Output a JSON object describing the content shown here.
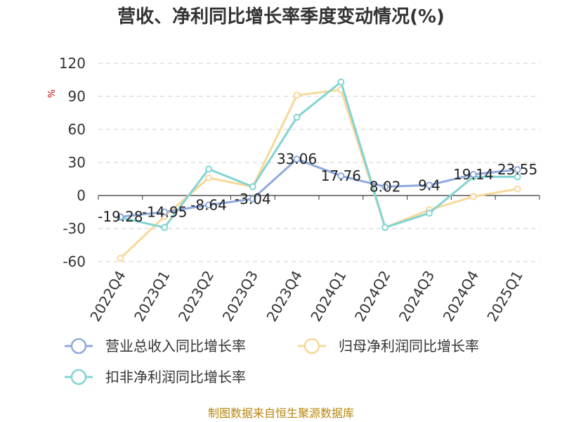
{
  "chart_data": {
    "type": "line",
    "title": "营收、净利同比增长率季度变动情况(%)",
    "ylabel": "%",
    "ylim": [
      -60,
      120
    ],
    "yticks": [
      120,
      90,
      60,
      30,
      0,
      -30,
      -60
    ],
    "categories": [
      "2022Q4",
      "2023Q1",
      "2023Q2",
      "2023Q3",
      "2023Q4",
      "2024Q1",
      "2024Q2",
      "2024Q3",
      "2024Q4",
      "2025Q1"
    ],
    "series": [
      {
        "name": "营业总收入同比增长率",
        "color": "#8faadc",
        "values": [
          -19.28,
          -14.95,
          -8.64,
          -3.04,
          33.06,
          17.76,
          8.02,
          9.4,
          19.14,
          23.55
        ],
        "labels": [
          "-19.28",
          "-14.95",
          "-8.64",
          "-3.04",
          "33.06",
          "17.76",
          "8.02",
          "9.4",
          "19.14",
          "23.55"
        ]
      },
      {
        "name": "归母净利润同比增长率",
        "color": "#f8d89a",
        "values": [
          -57,
          -19,
          16,
          8,
          91,
          96,
          -29,
          -13,
          -1,
          6
        ]
      },
      {
        "name": "扣非净利润同比增长率",
        "color": "#82d4d2",
        "values": [
          -20,
          -29,
          24,
          8,
          71,
          103,
          -29,
          -16,
          17,
          17
        ]
      }
    ],
    "grid": true,
    "legend_position": "bottom"
  },
  "source": "制图数据来自恒生聚源数据库"
}
